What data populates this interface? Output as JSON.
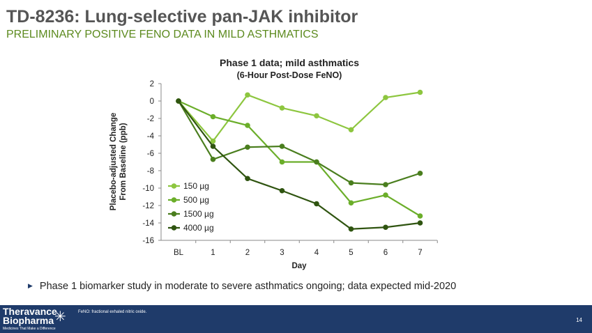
{
  "header": {
    "title": "TD-8236: Lung-selective pan-JAK inhibitor",
    "subtitle": "PRELIMINARY POSITIVE FENO DATA IN MILD ASTHMATICS"
  },
  "chart_data": {
    "type": "line",
    "title": "Phase 1 data; mild asthmatics",
    "subtitle": "(6-Hour Post-Dose FeNO)",
    "xlabel": "Day",
    "ylabel": [
      "Placebo-adjusted Change",
      "From Baseline (ppb)"
    ],
    "categories": [
      "BL",
      "1",
      "2",
      "3",
      "4",
      "5",
      "6",
      "7"
    ],
    "ylim": [
      -16,
      2
    ],
    "yticks": [
      2,
      0,
      -2,
      -4,
      -6,
      -8,
      -10,
      -12,
      -14,
      -16
    ],
    "legend_position": "bottom-left",
    "series": [
      {
        "name": "150 µg",
        "color": "#8dc63f",
        "values": [
          0,
          -4.6,
          0.7,
          -0.8,
          -1.7,
          -3.3,
          0.4,
          1.0
        ]
      },
      {
        "name": "500 µg",
        "color": "#6bae2a",
        "values": [
          0,
          -1.8,
          -2.8,
          -7.0,
          -7.0,
          -11.7,
          -10.8,
          -13.2
        ]
      },
      {
        "name": "1500 µg",
        "color": "#4a7e1e",
        "values": [
          0,
          -6.7,
          -5.3,
          -5.2,
          -7.0,
          -9.4,
          -9.6,
          -8.3
        ]
      },
      {
        "name": "4000 µg",
        "color": "#2f5410",
        "values": [
          0,
          -5.2,
          -8.9,
          -10.3,
          -11.8,
          -14.7,
          -14.5,
          -14.0
        ]
      }
    ]
  },
  "bullet": "Phase 1 biomarker study in moderate to severe asthmatics ongoing; data expected mid-2020",
  "footer": {
    "logo_line1": "Theravance",
    "logo_line2": "Biopharma",
    "logo_tagline": "Medicines That Make a Difference",
    "footnote": "FeNO: fractional exhaled nitric oxide.",
    "page": "14"
  }
}
